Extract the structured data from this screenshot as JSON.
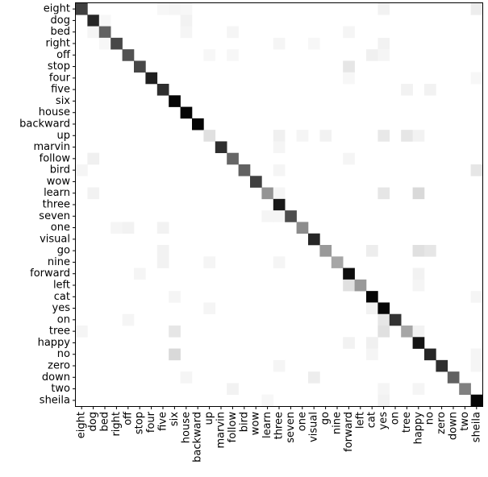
{
  "chart_data": {
    "type": "heatmap",
    "title": "",
    "xlabel": "",
    "ylabel": "",
    "categories": [
      "eight",
      "dog",
      "bed",
      "right",
      "off",
      "stop",
      "four",
      "five",
      "six",
      "house",
      "backward",
      "up",
      "marvin",
      "follow",
      "bird",
      "wow",
      "learn",
      "three",
      "seven",
      "one",
      "visual",
      "go",
      "nine",
      "forward",
      "left",
      "cat",
      "yes",
      "on",
      "tree",
      "happy",
      "no",
      "zero",
      "down",
      "two",
      "sheila"
    ],
    "color_scale": {
      "low": "#ffffff",
      "high": "#000000",
      "range": [
        0,
        1
      ]
    },
    "diagonal": [
      0.75,
      0.85,
      0.62,
      0.72,
      0.68,
      0.72,
      0.88,
      0.82,
      0.98,
      0.98,
      0.98,
      0.12,
      0.82,
      0.6,
      0.62,
      0.75,
      0.42,
      0.9,
      0.7,
      0.45,
      0.85,
      0.4,
      0.35,
      0.95,
      0.4,
      0.98,
      0.98,
      0.8,
      0.35,
      0.92,
      0.85,
      0.82,
      0.62,
      0.5,
      0.98
    ],
    "off_diagonal": [
      {
        "row": "eight",
        "col": "five",
        "value": 0.03
      },
      {
        "row": "eight",
        "col": "six",
        "value": 0.04
      },
      {
        "row": "eight",
        "col": "house",
        "value": 0.03
      },
      {
        "row": "eight",
        "col": "yes",
        "value": 0.05
      },
      {
        "row": "eight",
        "col": "sheila",
        "value": 0.07
      },
      {
        "row": "dog",
        "col": "house",
        "value": 0.05
      },
      {
        "row": "dog",
        "col": "bed",
        "value": 0.03
      },
      {
        "row": "bed",
        "col": "dog",
        "value": 0.04
      },
      {
        "row": "bed",
        "col": "house",
        "value": 0.04
      },
      {
        "row": "bed",
        "col": "follow",
        "value": 0.04
      },
      {
        "row": "bed",
        "col": "forward",
        "value": 0.04
      },
      {
        "row": "right",
        "col": "bed",
        "value": 0.03
      },
      {
        "row": "right",
        "col": "three",
        "value": 0.04
      },
      {
        "row": "right",
        "col": "visual",
        "value": 0.03
      },
      {
        "row": "right",
        "col": "yes",
        "value": 0.05
      },
      {
        "row": "off",
        "col": "up",
        "value": 0.03
      },
      {
        "row": "off",
        "col": "follow",
        "value": 0.03
      },
      {
        "row": "off",
        "col": "cat",
        "value": 0.06
      },
      {
        "row": "off",
        "col": "yes",
        "value": 0.04
      },
      {
        "row": "stop",
        "col": "forward",
        "value": 0.1
      },
      {
        "row": "four",
        "col": "forward",
        "value": 0.03
      },
      {
        "row": "four",
        "col": "sheila",
        "value": 0.03
      },
      {
        "row": "five",
        "col": "tree",
        "value": 0.05
      },
      {
        "row": "five",
        "col": "no",
        "value": 0.05
      },
      {
        "row": "up",
        "col": "one",
        "value": 0.04
      },
      {
        "row": "up",
        "col": "go",
        "value": 0.05
      },
      {
        "row": "up",
        "col": "yes",
        "value": 0.09
      },
      {
        "row": "up",
        "col": "tree",
        "value": 0.1
      },
      {
        "row": "up",
        "col": "happy",
        "value": 0.05
      },
      {
        "row": "up",
        "col": "three",
        "value": 0.06
      },
      {
        "row": "marvin",
        "col": "three",
        "value": 0.04
      },
      {
        "row": "follow",
        "col": "dog",
        "value": 0.06
      },
      {
        "row": "follow",
        "col": "forward",
        "value": 0.04
      },
      {
        "row": "bird",
        "col": "eight",
        "value": 0.04
      },
      {
        "row": "bird",
        "col": "three",
        "value": 0.04
      },
      {
        "row": "bird",
        "col": "sheila",
        "value": 0.1
      },
      {
        "row": "learn",
        "col": "yes",
        "value": 0.1
      },
      {
        "row": "learn",
        "col": "happy",
        "value": 0.15
      },
      {
        "row": "learn",
        "col": "dog",
        "value": 0.05
      },
      {
        "row": "learn",
        "col": "three",
        "value": 0.04
      },
      {
        "row": "seven",
        "col": "learn",
        "value": 0.04
      },
      {
        "row": "seven",
        "col": "three",
        "value": 0.04
      },
      {
        "row": "one",
        "col": "right",
        "value": 0.04
      },
      {
        "row": "one",
        "col": "off",
        "value": 0.05
      },
      {
        "row": "one",
        "col": "five",
        "value": 0.05
      },
      {
        "row": "go",
        "col": "cat",
        "value": 0.07
      },
      {
        "row": "go",
        "col": "happy",
        "value": 0.12
      },
      {
        "row": "go",
        "col": "no",
        "value": 0.1
      },
      {
        "row": "go",
        "col": "five",
        "value": 0.05
      },
      {
        "row": "nine",
        "col": "five",
        "value": 0.05
      },
      {
        "row": "nine",
        "col": "up",
        "value": 0.04
      },
      {
        "row": "nine",
        "col": "three",
        "value": 0.04
      },
      {
        "row": "forward",
        "col": "stop",
        "value": 0.04
      },
      {
        "row": "forward",
        "col": "happy",
        "value": 0.05
      },
      {
        "row": "left",
        "col": "forward",
        "value": 0.12
      },
      {
        "row": "left",
        "col": "happy",
        "value": 0.04
      },
      {
        "row": "cat",
        "col": "six",
        "value": 0.04
      },
      {
        "row": "cat",
        "col": "sheila",
        "value": 0.04
      },
      {
        "row": "yes",
        "col": "up",
        "value": 0.04
      },
      {
        "row": "yes",
        "col": "cat",
        "value": 0.05
      },
      {
        "row": "on",
        "col": "off",
        "value": 0.04
      },
      {
        "row": "on",
        "col": "yes",
        "value": 0.1
      },
      {
        "row": "tree",
        "col": "six",
        "value": 0.1
      },
      {
        "row": "tree",
        "col": "yes",
        "value": 0.12
      },
      {
        "row": "tree",
        "col": "happy",
        "value": 0.05
      },
      {
        "row": "tree",
        "col": "eight",
        "value": 0.04
      },
      {
        "row": "happy",
        "col": "cat",
        "value": 0.06
      },
      {
        "row": "happy",
        "col": "forward",
        "value": 0.05
      },
      {
        "row": "no",
        "col": "six",
        "value": 0.15
      },
      {
        "row": "no",
        "col": "cat",
        "value": 0.04
      },
      {
        "row": "no",
        "col": "sheila",
        "value": 0.04
      },
      {
        "row": "zero",
        "col": "three",
        "value": 0.04
      },
      {
        "row": "zero",
        "col": "sheila",
        "value": 0.04
      },
      {
        "row": "down",
        "col": "visual",
        "value": 0.07
      },
      {
        "row": "down",
        "col": "house",
        "value": 0.04
      },
      {
        "row": "two",
        "col": "follow",
        "value": 0.05
      },
      {
        "row": "two",
        "col": "yes",
        "value": 0.04
      },
      {
        "row": "two",
        "col": "happy",
        "value": 0.04
      },
      {
        "row": "sheila",
        "col": "yes",
        "value": 0.05
      },
      {
        "row": "sheila",
        "col": "learn",
        "value": 0.03
      }
    ],
    "grid": false,
    "legend": false
  }
}
